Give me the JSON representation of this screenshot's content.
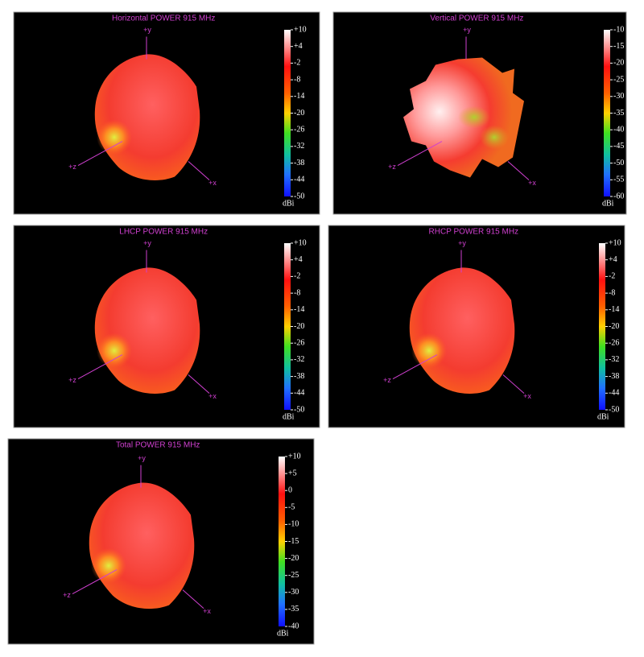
{
  "chart_data": [
    {
      "type": "3d-pattern",
      "title": "Horizontal POWER 915  MHz",
      "axis_labels": [
        "+y",
        "+z",
        "+x"
      ],
      "colorbar_label": "dBi",
      "clim": [
        -50,
        10
      ],
      "cticks": [
        {
          "value": 10,
          "label": "+10"
        },
        {
          "value": 4,
          "label": "+4"
        },
        -2,
        -8,
        -14,
        -20,
        -26,
        -32,
        -38,
        -44,
        -50
      ]
    },
    {
      "type": "3d-pattern-jagged",
      "title": "Vertical POWER 915  MHz",
      "axis_labels": [
        "+y",
        "+z",
        "+x"
      ],
      "colorbar_label": "dBi",
      "clim": [
        -60,
        -10
      ],
      "cticks": [
        -10,
        -15,
        -20,
        -25,
        -30,
        -35,
        -40,
        -45,
        -50,
        -55,
        -60
      ]
    },
    {
      "type": "3d-pattern",
      "title": "LHCP POWER 915  MHz",
      "axis_labels": [
        "+y",
        "+z",
        "+x"
      ],
      "colorbar_label": "dBi",
      "clim": [
        -50,
        10
      ],
      "cticks": [
        {
          "value": 10,
          "label": "+10"
        },
        {
          "value": 4,
          "label": "+4"
        },
        -2,
        -8,
        -14,
        -20,
        -26,
        -32,
        -38,
        -44,
        -50
      ]
    },
    {
      "type": "3d-pattern",
      "title": "RHCP POWER 915  MHz",
      "axis_labels": [
        "+y",
        "+z",
        "+x"
      ],
      "colorbar_label": "dBi",
      "clim": [
        -50,
        10
      ],
      "cticks": [
        {
          "value": 10,
          "label": "+10"
        },
        {
          "value": 4,
          "label": "+4"
        },
        -2,
        -8,
        -14,
        -20,
        -26,
        -32,
        -38,
        -44,
        -50
      ]
    },
    {
      "type": "3d-pattern",
      "title": "Total POWER 915  MHz",
      "axis_labels": [
        "+y",
        "+z",
        "+x"
      ],
      "colorbar_label": "dBi",
      "clim": [
        -40,
        10
      ],
      "cticks": [
        {
          "value": 10,
          "label": "+10"
        },
        {
          "value": 5,
          "label": "+5"
        },
        0,
        -5,
        -10,
        -15,
        -20,
        -25,
        -30,
        -35,
        -40
      ]
    }
  ]
}
